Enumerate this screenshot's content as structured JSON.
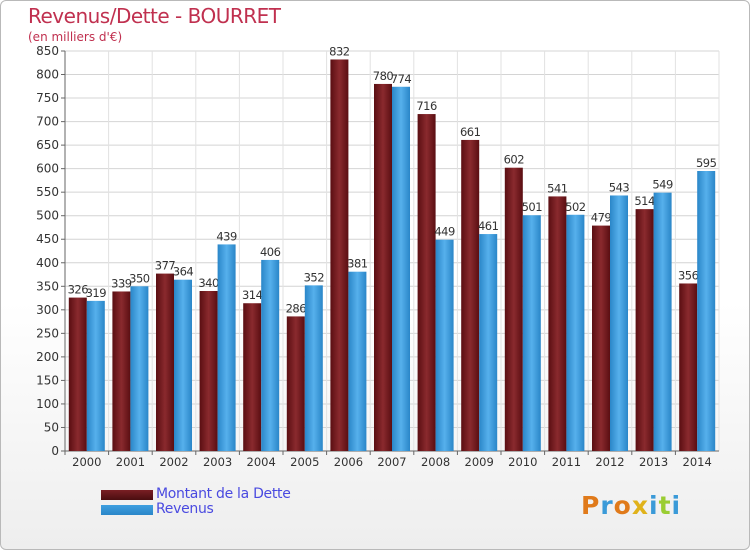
{
  "header": {
    "title": "Revenus/Dette - BOURRET",
    "subtitle": "(en milliers d'€)"
  },
  "legend": {
    "items": [
      {
        "label": "Montant de la Dette",
        "color": "#7a1f24"
      },
      {
        "label": "Revenus",
        "color": "#3f9fe0"
      }
    ]
  },
  "logo": {
    "text": "Proxiti",
    "letters": [
      {
        "ch": "P",
        "color": "#e07a1a"
      },
      {
        "ch": "r",
        "color": "#3a9ad8"
      },
      {
        "ch": "o",
        "color": "#e07a1a"
      },
      {
        "ch": "x",
        "color": "#e0b21a"
      },
      {
        "ch": "i",
        "color": "#3a9ad8"
      },
      {
        "ch": "t",
        "color": "#9acd32"
      },
      {
        "ch": "i",
        "color": "#3a9ad8"
      }
    ]
  },
  "chart_data": {
    "type": "bar",
    "title": "Revenus/Dette - BOURRET",
    "subtitle": "(en milliers d'€)",
    "categories": [
      "2000",
      "2001",
      "2002",
      "2003",
      "2004",
      "2005",
      "2006",
      "2007",
      "2008",
      "2009",
      "2010",
      "2011",
      "2012",
      "2013",
      "2014"
    ],
    "series": [
      {
        "name": "Montant de la Dette",
        "color": "#7a1f24",
        "values": [
          326,
          339,
          377,
          340,
          314,
          286,
          832,
          780,
          716,
          661,
          602,
          541,
          479,
          514,
          356
        ]
      },
      {
        "name": "Revenus",
        "color": "#3f9fe0",
        "values": [
          319,
          350,
          364,
          439,
          406,
          352,
          381,
          774,
          449,
          461,
          501,
          502,
          543,
          549,
          595
        ]
      }
    ],
    "ylim": [
      0,
      850
    ],
    "yticks": [
      0,
      50,
      100,
      150,
      200,
      250,
      300,
      350,
      400,
      450,
      500,
      550,
      600,
      650,
      700,
      750,
      800,
      850
    ],
    "grid": true,
    "legend_position": "bottom-left"
  }
}
